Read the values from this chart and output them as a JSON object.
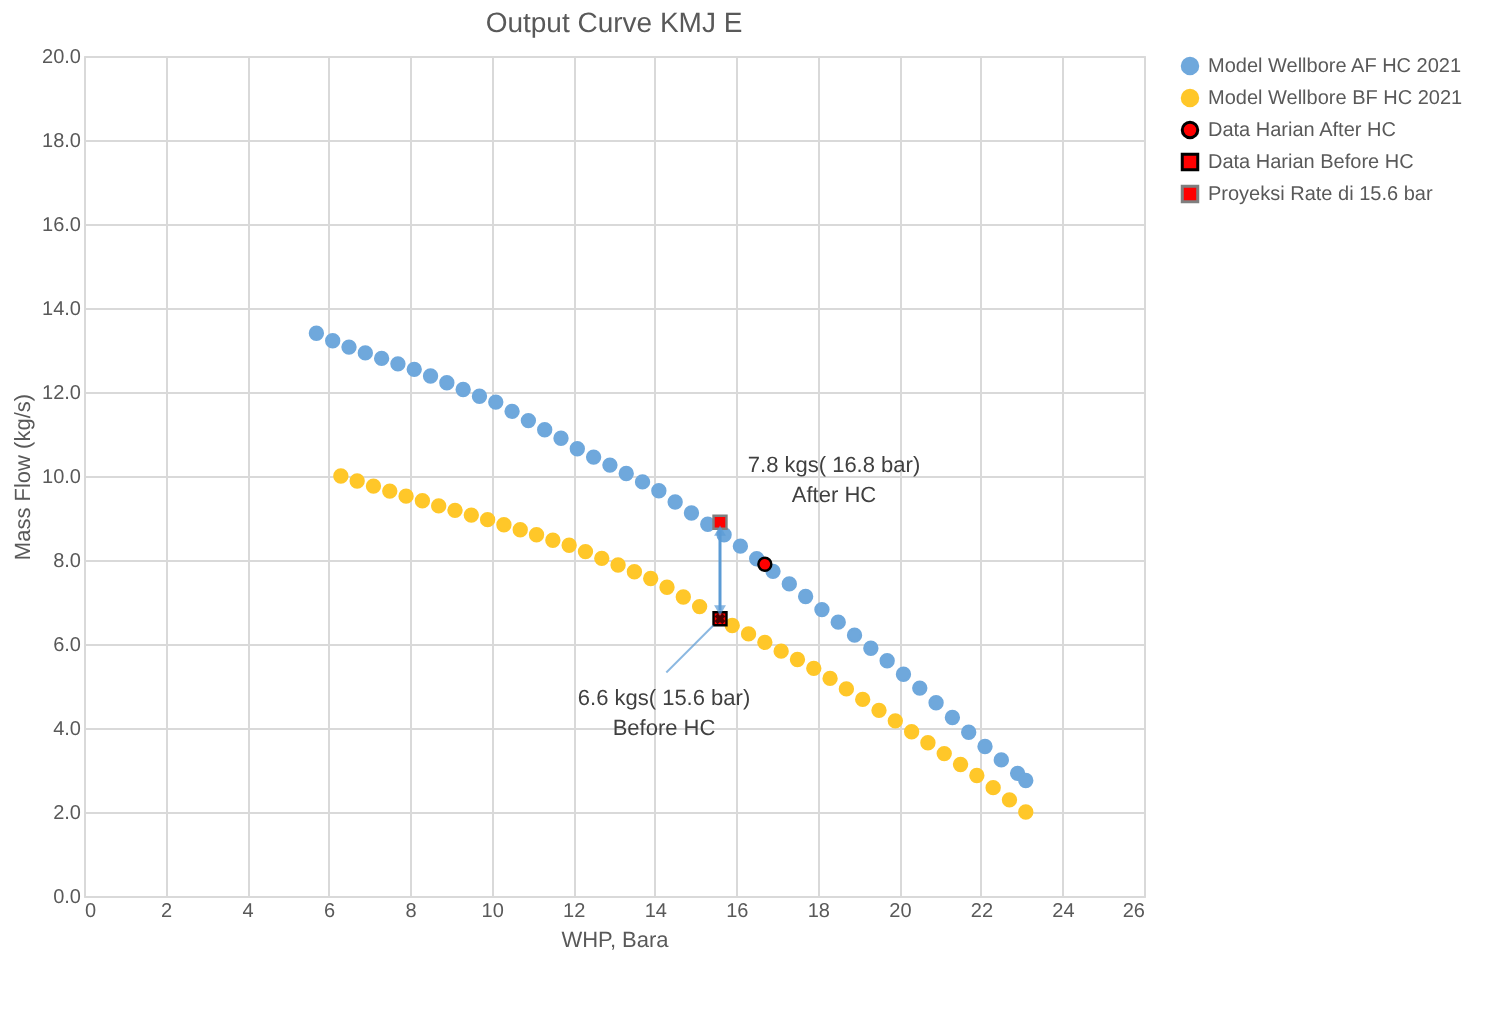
{
  "chart_data": {
    "type": "scatter",
    "title": "Output Curve KMJ E",
    "xlabel": "WHP, Bara",
    "ylabel": "Mass Flow (kg/s)",
    "xlim": [
      0,
      26
    ],
    "xticks": [
      0,
      2,
      4,
      6,
      8,
      10,
      12,
      14,
      16,
      18,
      20,
      22,
      24,
      26
    ],
    "ylim": [
      0,
      20
    ],
    "yticks": [
      {
        "value": 0,
        "label": "0.0"
      },
      {
        "value": 2,
        "label": "2.0"
      },
      {
        "value": 4,
        "label": "4.0"
      },
      {
        "value": 6,
        "label": "6.0"
      },
      {
        "value": 8,
        "label": "8.0"
      },
      {
        "value": 10,
        "label": "10.0"
      },
      {
        "value": 12,
        "label": "12.0"
      },
      {
        "value": 14,
        "label": "14.0"
      },
      {
        "value": 16,
        "label": "16.0"
      },
      {
        "value": 18,
        "label": "18.0"
      },
      {
        "value": 20,
        "label": "20.0"
      }
    ],
    "grid": true,
    "legend": "right",
    "series": [
      {
        "name": "Model Wellbore  AF HC 2021",
        "color": "#6fa8dc",
        "marker": "circle",
        "x": [
          5.7,
          6.1,
          6.5,
          6.9,
          7.3,
          7.7,
          8.1,
          8.5,
          8.9,
          9.3,
          9.7,
          10.1,
          10.5,
          10.9,
          11.3,
          11.7,
          12.1,
          12.5,
          12.9,
          13.3,
          13.7,
          14.1,
          14.5,
          14.9,
          15.3,
          15.7,
          16.1,
          16.5,
          16.9,
          17.3,
          17.7,
          18.1,
          18.5,
          18.9,
          19.3,
          19.7,
          20.1,
          20.5,
          20.9,
          21.3,
          21.7,
          22.1,
          22.5,
          22.9,
          23.1
        ],
        "values": [
          13.4,
          13.22,
          13.07,
          12.93,
          12.8,
          12.67,
          12.54,
          12.38,
          12.22,
          12.06,
          11.9,
          11.76,
          11.54,
          11.32,
          11.1,
          10.9,
          10.65,
          10.45,
          10.26,
          10.06,
          9.86,
          9.65,
          9.38,
          9.12,
          8.85,
          8.6,
          8.33,
          8.03,
          7.73,
          7.43,
          7.13,
          6.82,
          6.52,
          6.21,
          5.9,
          5.6,
          5.28,
          4.95,
          4.6,
          4.25,
          3.9,
          3.56,
          3.24,
          2.92,
          2.75
        ]
      },
      {
        "name": "Model Wellbore  BF HC 2021",
        "color": "#ffc729",
        "marker": "circle",
        "x": [
          6.3,
          6.7,
          7.1,
          7.5,
          7.9,
          8.3,
          8.7,
          9.1,
          9.5,
          9.9,
          10.3,
          10.7,
          11.1,
          11.5,
          11.9,
          12.3,
          12.7,
          13.1,
          13.5,
          13.9,
          14.3,
          14.7,
          15.1,
          15.5,
          15.9,
          16.3,
          16.7,
          17.1,
          17.5,
          17.9,
          18.3,
          18.7,
          19.1,
          19.5,
          19.9,
          20.3,
          20.7,
          21.1,
          21.5,
          21.9,
          22.3,
          22.7,
          23.1
        ],
        "values": [
          10.0,
          9.88,
          9.76,
          9.64,
          9.52,
          9.41,
          9.29,
          9.18,
          9.07,
          8.96,
          8.84,
          8.72,
          8.6,
          8.47,
          8.35,
          8.2,
          8.04,
          7.88,
          7.72,
          7.56,
          7.35,
          7.12,
          6.89,
          null,
          6.44,
          6.24,
          6.04,
          5.83,
          5.63,
          5.42,
          5.18,
          4.93,
          4.68,
          4.42,
          4.17,
          3.91,
          3.65,
          3.39,
          3.13,
          2.87,
          2.58,
          2.29,
          2.0
        ]
      },
      {
        "name": "Data Harian After HC",
        "color": "#ff0000",
        "marker": "circle",
        "x": [
          16.7
        ],
        "values": [
          7.9
        ]
      },
      {
        "name": "Data Harian Before HC",
        "color": "#ff0000",
        "marker": "square",
        "x": [
          15.6
        ],
        "values": [
          6.6
        ]
      },
      {
        "name": "Proyeksi Rate di 15.6 bar",
        "color": "#ff0000",
        "marker": "square",
        "x": [
          15.6
        ],
        "values": [
          8.9
        ]
      },
      {
        "type": "line",
        "color": "#5b9bd5",
        "marker": "triangle",
        "x": [
          15.6,
          15.6
        ],
        "values": [
          8.7,
          6.8
        ]
      }
    ],
    "annotations": [
      "7.8 kgs( 16.8 bar)\nAfter HC",
      {
        "text": "6.6 kgs( 15.6 bar)\nBefore HC",
        "x": 15.6,
        "y": 6.6
      }
    ]
  }
}
